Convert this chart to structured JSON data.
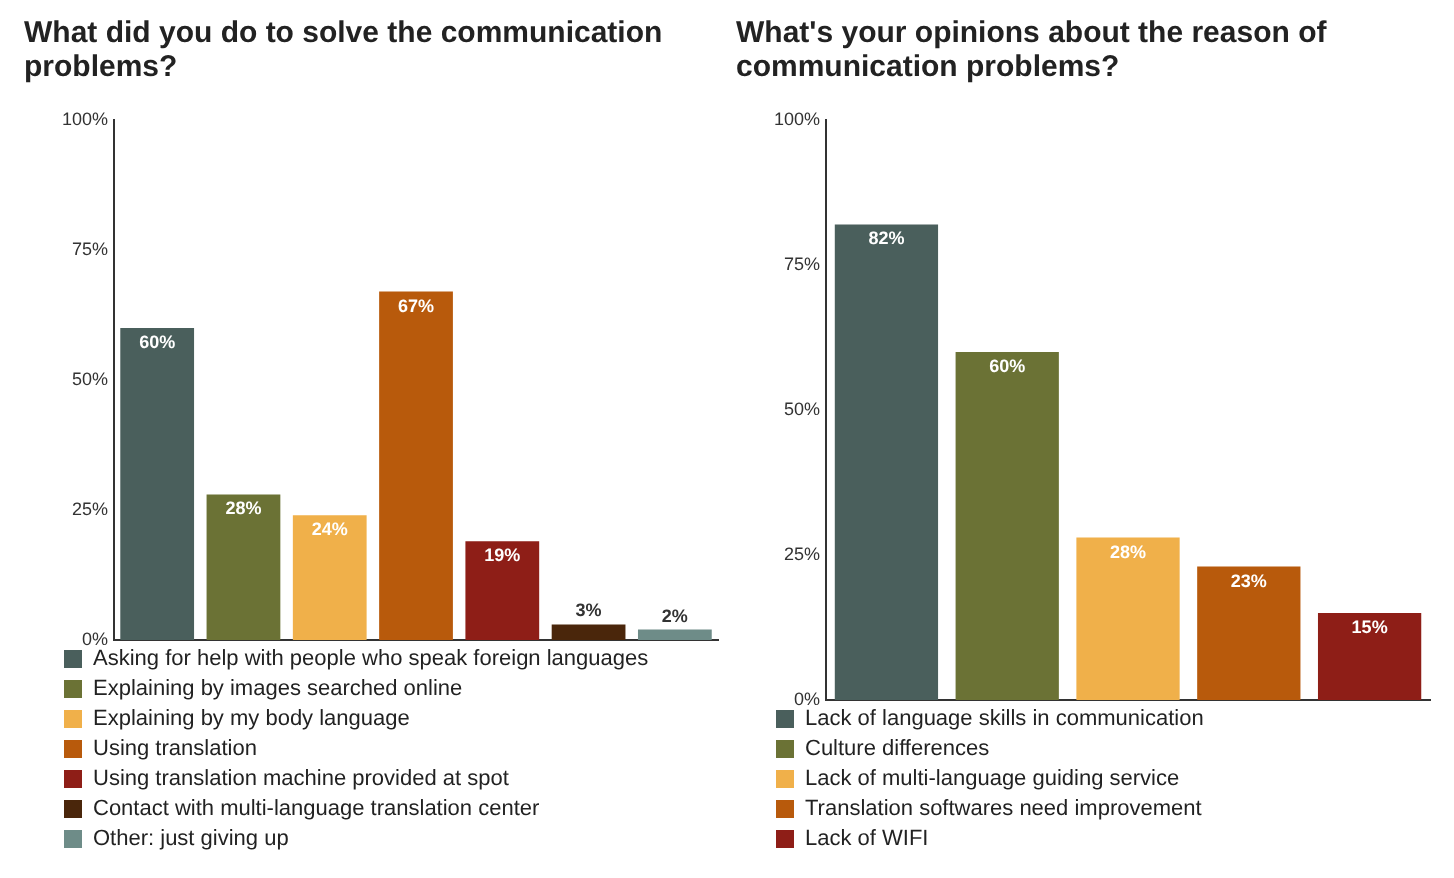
{
  "chart_data": [
    {
      "type": "bar",
      "title": "What did you do to solve the communication problems?",
      "categories": [
        null,
        null,
        null,
        null,
        null,
        null,
        null
      ],
      "series": [
        {
          "name": "Asking for help with people who speak foreign languages",
          "color": "#4a5f5c",
          "values": [
            60,
            null,
            null,
            null,
            null,
            null,
            null
          ],
          "value_labels": [
            "60%",
            null,
            null,
            null,
            null,
            null,
            null
          ]
        },
        {
          "name": "Explaining by images searched online",
          "color": "#6b7235",
          "values": [
            null,
            28,
            null,
            null,
            null,
            null,
            null
          ],
          "value_labels": [
            null,
            "28%",
            null,
            null,
            null,
            null,
            null
          ]
        },
        {
          "name": "Explaining by my body language",
          "color": "#f0b04a",
          "values": [
            null,
            null,
            24,
            null,
            null,
            null,
            null
          ],
          "value_labels": [
            null,
            null,
            "24%",
            null,
            null,
            null,
            null
          ]
        },
        {
          "name": "Using translation",
          "color": "#b85a0c",
          "values": [
            null,
            null,
            null,
            67,
            null,
            null,
            null
          ],
          "value_labels": [
            null,
            null,
            null,
            "67%",
            null,
            null,
            null
          ]
        },
        {
          "name": "Using translation machine provided at spot",
          "color": "#8e1e17",
          "values": [
            null,
            null,
            null,
            null,
            19,
            null,
            null
          ],
          "value_labels": [
            null,
            null,
            null,
            null,
            "19%",
            null,
            null
          ]
        },
        {
          "name": "Contact with multi-language translation center",
          "color": "#4a260b",
          "values": [
            null,
            null,
            null,
            null,
            null,
            3,
            null
          ],
          "value_labels": [
            null,
            null,
            null,
            null,
            null,
            "3%",
            null
          ]
        },
        {
          "name": "Other: just giving up",
          "color": "#6e8c88",
          "values": [
            null,
            null,
            null,
            null,
            null,
            null,
            2
          ],
          "value_labels": [
            null,
            null,
            null,
            null,
            null,
            null,
            "2%"
          ]
        }
      ],
      "ylim": [
        0,
        100
      ],
      "yticks": [
        {
          "value": 0,
          "label": "0%"
        },
        {
          "value": 25,
          "label": "25%"
        },
        {
          "value": 50,
          "label": "50%"
        },
        {
          "value": 75,
          "label": "75%"
        },
        {
          "value": 100,
          "label": "100%"
        }
      ],
      "tick_labels": "y",
      "legend": "bottom"
    },
    {
      "type": "bar",
      "title": "What's your opinions about the reason of communication problems?",
      "categories": [
        null,
        null,
        null,
        null,
        null
      ],
      "series": [
        {
          "name": "Lack of language skills in communication",
          "color": "#4a5f5c",
          "values": [
            82,
            null,
            null,
            null,
            null
          ],
          "value_labels": [
            "82%",
            null,
            null,
            null,
            null
          ]
        },
        {
          "name": "Culture differences",
          "color": "#6b7235",
          "values": [
            null,
            60,
            null,
            null,
            null
          ],
          "value_labels": [
            null,
            "60%",
            null,
            null,
            null
          ]
        },
        {
          "name": "Lack of multi-language guiding service",
          "color": "#f0b04a",
          "values": [
            null,
            null,
            28,
            null,
            null
          ],
          "value_labels": [
            null,
            null,
            "28%",
            null,
            null
          ]
        },
        {
          "name": "Translation softwares need improvement",
          "color": "#b85a0c",
          "values": [
            null,
            null,
            null,
            23,
            null
          ],
          "value_labels": [
            null,
            null,
            null,
            "23%",
            null
          ]
        },
        {
          "name": "Lack of WIFI",
          "color": "#8e1e17",
          "values": [
            null,
            null,
            null,
            null,
            15
          ],
          "value_labels": [
            null,
            null,
            null,
            null,
            "15%"
          ]
        }
      ],
      "ylim": [
        0,
        100
      ],
      "yticks": [
        {
          "value": 0,
          "label": "0%"
        },
        {
          "value": 25,
          "label": "25%"
        },
        {
          "value": 50,
          "label": "50%"
        },
        {
          "value": 75,
          "label": "75%"
        },
        {
          "value": 100,
          "label": "100%"
        }
      ],
      "tick_labels": "y",
      "legend": "bottom"
    }
  ]
}
